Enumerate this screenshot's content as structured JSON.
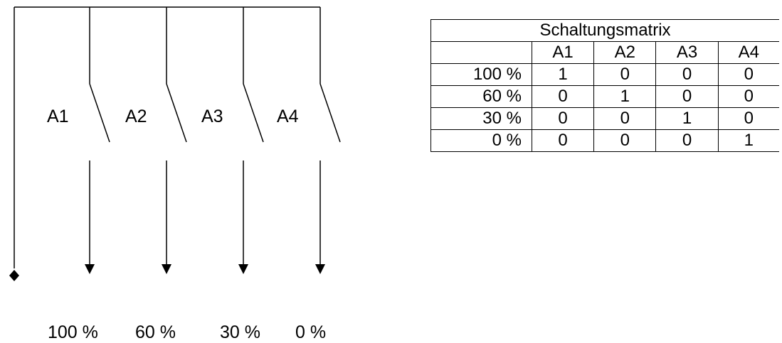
{
  "switches": [
    {
      "id": "A1"
    },
    {
      "id": "A2"
    },
    {
      "id": "A3"
    },
    {
      "id": "A4"
    }
  ],
  "outputs": [
    "100 %",
    "60 %",
    "30 %",
    "0 %"
  ],
  "matrix": {
    "title": "Schaltungsmatrix",
    "columns": [
      "A1",
      "A2",
      "A3",
      "A4"
    ],
    "rows": [
      {
        "label": "100 %",
        "values": [
          "1",
          "0",
          "0",
          "0"
        ]
      },
      {
        "label": "60 %",
        "values": [
          "0",
          "1",
          "0",
          "0"
        ]
      },
      {
        "label": "30 %",
        "values": [
          "0",
          "0",
          "1",
          "0"
        ]
      },
      {
        "label": "0 %",
        "values": [
          "0",
          "0",
          "0",
          "1"
        ]
      }
    ]
  }
}
